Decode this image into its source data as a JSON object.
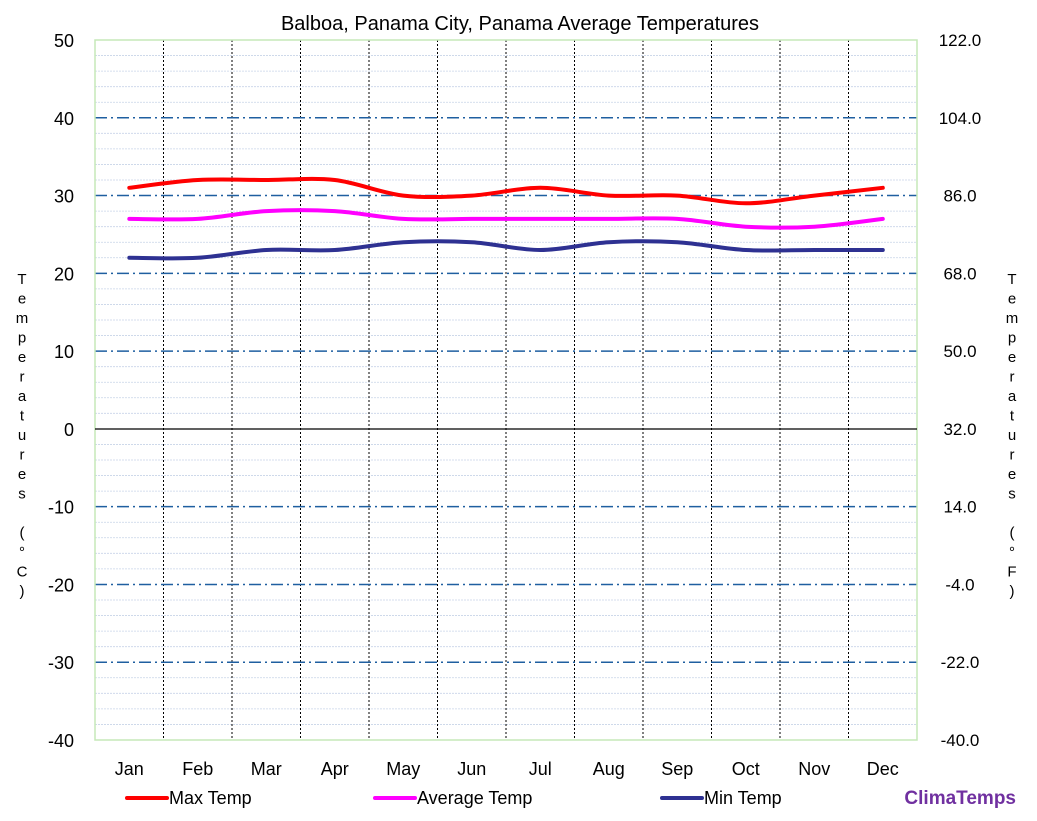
{
  "chart_data": {
    "type": "line",
    "title": "Balboa, Panama City, Panama Average Temperatures",
    "categories": [
      "Jan",
      "Feb",
      "Mar",
      "Apr",
      "May",
      "Jun",
      "Jul",
      "Aug",
      "Sep",
      "Oct",
      "Nov",
      "Dec"
    ],
    "series": [
      {
        "name": "Max Temp",
        "color": "#ff0000",
        "values": [
          31,
          32,
          32,
          32,
          30,
          30,
          31,
          30,
          30,
          29,
          30,
          31
        ]
      },
      {
        "name": "Average Temp",
        "color": "#ff00ff",
        "values": [
          27,
          27,
          28,
          28,
          27,
          27,
          27,
          27,
          27,
          26,
          26,
          27
        ]
      },
      {
        "name": "Min Temp",
        "color": "#2e3192",
        "values": [
          22,
          22,
          23,
          23,
          24,
          24,
          23,
          24,
          24,
          23,
          23,
          23
        ]
      }
    ],
    "ylim": [
      -40,
      50
    ],
    "y_ticks": [
      "50",
      "40",
      "30",
      "20",
      "10",
      "0",
      "-10",
      "-20",
      "-30",
      "-40"
    ],
    "y2_ticks": [
      "122.0",
      "104.0",
      "86.0",
      "68.0",
      "50.0",
      "32.0",
      "14.0",
      "-4.0",
      "-22.0",
      "-40.0"
    ],
    "ylabel": "Temperatures (°C)",
    "y2label": "Temperatures (°F)",
    "grid": true,
    "legend": "bottom",
    "brand": "ClimaTemps"
  }
}
